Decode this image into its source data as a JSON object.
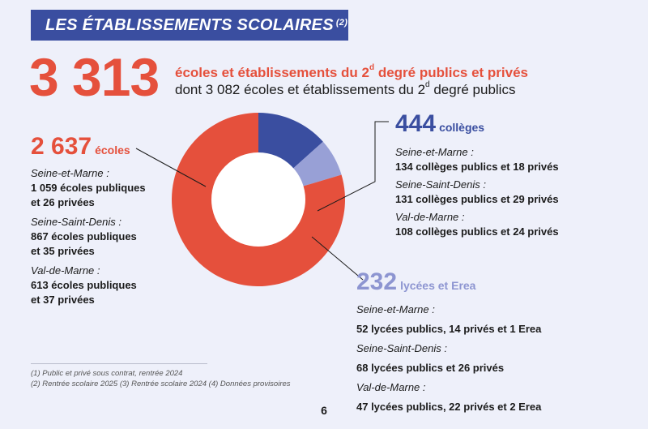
{
  "banner": {
    "title": "LES ÉTABLISSEMENTS SCOLAIRES",
    "note": "(2)"
  },
  "total": {
    "number": "3 313",
    "line1_a": "écoles et établissements du 2",
    "line1_sup": "d",
    "line1_b": " degré publics et privés",
    "line2_a": "dont 3 082 écoles et établissements du 2",
    "line2_sup": "d",
    "line2_b": " degré publics"
  },
  "ecoles": {
    "number": "2 637",
    "label": "écoles",
    "rows": [
      {
        "dep": "Seine-et-Marne :",
        "val1": "1 059 écoles publiques",
        "val2": "et 26 privées"
      },
      {
        "dep": "Seine-Saint-Denis :",
        "val1": "867 écoles publiques",
        "val2": "et 35 privées"
      },
      {
        "dep": "Val-de-Marne :",
        "val1": "613 écoles publiques",
        "val2": "et 37 privées"
      }
    ]
  },
  "colleges": {
    "number": "444",
    "label": "collèges",
    "rows": [
      {
        "dep": "Seine-et-Marne :",
        "val": " 134 collèges publics et 18 privés"
      },
      {
        "dep": "Seine-Saint-Denis :",
        "val": "131 collèges publics et 29 privés"
      },
      {
        "dep": "Val-de-Marne :",
        "val": "108 collèges publics et 24 privés"
      }
    ]
  },
  "lycees": {
    "number": "232",
    "label": "lycées et Erea",
    "rows": [
      {
        "dep": "Seine-et-Marne :",
        "val": " 52 lycées publics, 14 privés et 1 Erea"
      },
      {
        "dep": "Seine-Saint-Denis :",
        "val": " 68 lycées publics et 26 privés"
      },
      {
        "dep": "Val-de-Marne :",
        "val": " 47 lycées publics, 22 privés et 2 Erea"
      }
    ]
  },
  "footnotes": {
    "line1": "(1) Public et privé sous contrat, rentrée 2024",
    "line2": "(2) Rentrée scolaire 2025 (3) Rentrée scolaire 2024 (4) Données provisoires"
  },
  "page_number": "6",
  "colors": {
    "ecoles": "#e5503c",
    "colleges": "#3a4ea0",
    "lycees": "#98a0d6",
    "hole": "#ffffff"
  },
  "chart_data": {
    "type": "pie",
    "variant": "donut",
    "title": "Les établissements scolaires",
    "categories": [
      "écoles",
      "collèges",
      "lycées et Erea"
    ],
    "values": [
      2637,
      444,
      232
    ],
    "total": 3313
  }
}
